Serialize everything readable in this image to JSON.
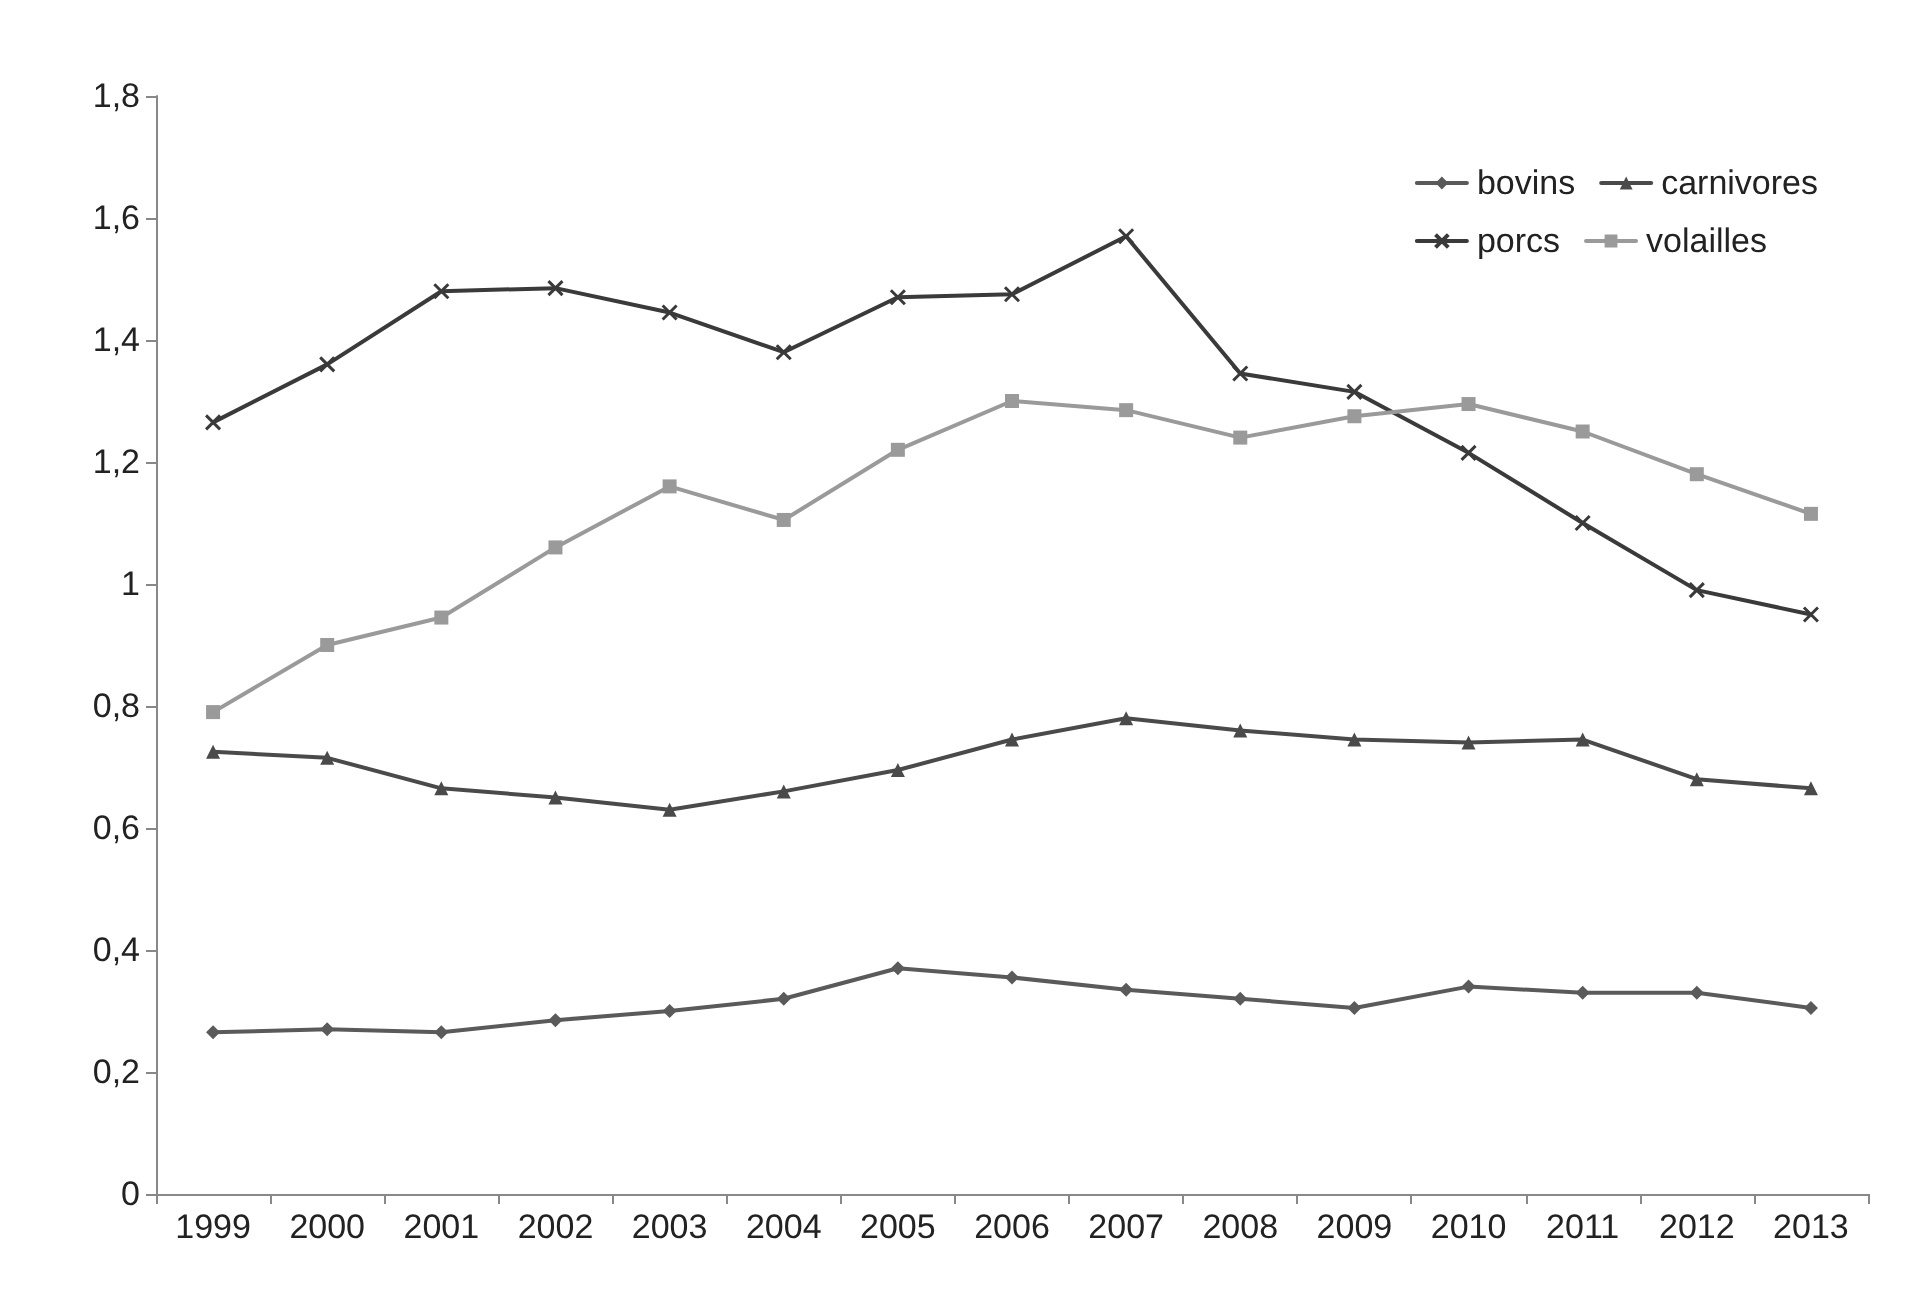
{
  "chart_data": {
    "type": "line",
    "categories": [
      "1999",
      "2000",
      "2001",
      "2002",
      "2003",
      "2004",
      "2005",
      "2006",
      "2007",
      "2008",
      "2009",
      "2010",
      "2011",
      "2012",
      "2013"
    ],
    "ylim": [
      0,
      1.8
    ],
    "yticks": [
      0,
      {
        "value": 0.2,
        "label": "0,2"
      },
      {
        "value": 0.4,
        "label": "0,4"
      },
      {
        "value": 0.6,
        "label": "0,6"
      },
      {
        "value": 0.8,
        "label": "0,8"
      },
      1,
      {
        "value": 1.2,
        "label": "1,2"
      },
      {
        "value": 1.4,
        "label": "1,4"
      },
      {
        "value": 1.6,
        "label": "1,6"
      },
      {
        "value": 1.8,
        "label": "1,8"
      }
    ],
    "grid": false,
    "legend": "top right",
    "line_style": "solid",
    "series": [
      {
        "name": "bovins",
        "color": "#5a5a5a",
        "marker": "diamond",
        "values": [
          0.265,
          0.27,
          0.265,
          0.285,
          0.3,
          0.32,
          0.37,
          0.355,
          0.335,
          0.32,
          0.305,
          0.34,
          0.33,
          0.33,
          0.305
        ]
      },
      {
        "name": "carnivores",
        "color": "#4a4a4a",
        "marker": "triangle",
        "values": [
          0.725,
          0.715,
          0.665,
          0.65,
          0.63,
          0.66,
          0.695,
          0.745,
          0.78,
          0.76,
          0.745,
          0.74,
          0.745,
          0.68,
          0.665
        ]
      },
      {
        "name": "porcs",
        "color": "#3a3a3a",
        "marker": "cross",
        "values": [
          1.265,
          1.36,
          1.48,
          1.485,
          1.445,
          1.38,
          1.47,
          1.475,
          1.57,
          1.345,
          1.315,
          1.215,
          1.1,
          0.99,
          0.95
        ]
      },
      {
        "name": "volailles",
        "color": "#9a9a9a",
        "marker": "square",
        "values": [
          0.79,
          0.9,
          0.945,
          1.06,
          1.16,
          1.105,
          1.22,
          1.3,
          1.285,
          1.24,
          1.275,
          1.295,
          1.25,
          1.18,
          1.115
        ]
      }
    ]
  }
}
